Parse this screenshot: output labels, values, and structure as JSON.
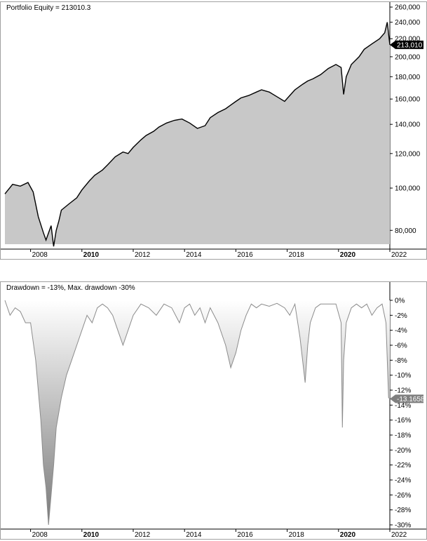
{
  "colors": {
    "equity_fill": "#c8c8c8",
    "equity_line": "#000000",
    "drawdown_line": "#8c8c8c",
    "tag_equity": "#000000",
    "tag_drawdown": "#808080",
    "frame": "#a0a0a0"
  },
  "chart_data": [
    {
      "type": "area",
      "title": "Portfolio Equity = 213010.3",
      "scale": "log",
      "ylim": [
        73000,
        262000
      ],
      "y_ticks": [
        "80,000",
        "100,000",
        "120,000",
        "140,000",
        "160,000",
        "180,000",
        "200,000",
        "220,000",
        "240,000",
        "260,000"
      ],
      "y_tick_values": [
        80000,
        100000,
        120000,
        140000,
        160000,
        180000,
        200000,
        220000,
        240000,
        260000
      ],
      "x_ticks": [
        {
          "label": "2008",
          "bold": false,
          "x": 2008
        },
        {
          "label": "2010",
          "bold": true,
          "x": 2010
        },
        {
          "label": "2012",
          "bold": false,
          "x": 2012
        },
        {
          "label": "2014",
          "bold": false,
          "x": 2014
        },
        {
          "label": "2016",
          "bold": false,
          "x": 2016
        },
        {
          "label": "2018",
          "bold": false,
          "x": 2018
        },
        {
          "label": "2020",
          "bold": true,
          "x": 2020
        },
        {
          "label": "2022",
          "bold": false,
          "x": 2022
        }
      ],
      "xlim": [
        2007.0,
        2022.0
      ],
      "last_value_label": "213,010",
      "last_value": 213010,
      "series": [
        {
          "x": [
            2007.0,
            2007.3,
            2007.6,
            2007.9,
            2008.1,
            2008.3,
            2008.5,
            2008.6,
            2008.8,
            2008.9,
            2009.0,
            2009.1,
            2009.2,
            2009.5,
            2009.8,
            2010.0,
            2010.3,
            2010.5,
            2010.8,
            2011.0,
            2011.3,
            2011.6,
            2011.8,
            2012.0,
            2012.3,
            2012.5,
            2012.8,
            2013.0,
            2013.3,
            2013.6,
            2013.9,
            2014.2,
            2014.5,
            2014.8,
            2015.0,
            2015.3,
            2015.6,
            2015.8,
            2016.0,
            2016.2,
            2016.5,
            2016.8,
            2017.0,
            2017.3,
            2017.6,
            2017.9,
            2018.1,
            2018.3,
            2018.6,
            2018.8,
            2019.0,
            2019.3,
            2019.6,
            2019.9,
            2020.1,
            2020.2,
            2020.3,
            2020.5,
            2020.8,
            2021.0,
            2021.3,
            2021.6,
            2021.8,
            2021.9,
            2022.0
          ],
          "values": [
            97000,
            102000,
            101000,
            103000,
            98000,
            86000,
            79000,
            76000,
            82000,
            73500,
            80000,
            84000,
            89000,
            92000,
            95000,
            99000,
            104000,
            107000,
            110000,
            113000,
            118000,
            121000,
            120000,
            124000,
            129000,
            132000,
            135000,
            138000,
            141000,
            143000,
            144000,
            141000,
            137000,
            139000,
            145000,
            149000,
            152000,
            155000,
            158000,
            161000,
            163000,
            166000,
            168000,
            166000,
            162000,
            158000,
            163000,
            168000,
            173000,
            176000,
            178000,
            182000,
            188000,
            192000,
            189000,
            164000,
            180000,
            192000,
            200000,
            208000,
            214000,
            220000,
            227000,
            240000,
            213010
          ]
        }
      ]
    },
    {
      "type": "area",
      "title": "Drawdown = -13%, Max. drawdown -30%",
      "ylim": [
        -30,
        0
      ],
      "y_ticks": [
        "0%",
        "-2%",
        "-4%",
        "-6%",
        "-8%",
        "-10%",
        "-12%",
        "-14%",
        "-16%",
        "-18%",
        "-20%",
        "-22%",
        "-24%",
        "-26%",
        "-28%",
        "-30%"
      ],
      "y_tick_values": [
        0,
        -2,
        -4,
        -6,
        -8,
        -10,
        -12,
        -14,
        -16,
        -18,
        -20,
        -22,
        -24,
        -26,
        -28,
        -30
      ],
      "x_ticks": [
        {
          "label": "2008",
          "bold": false,
          "x": 2008
        },
        {
          "label": "2010",
          "bold": true,
          "x": 2010
        },
        {
          "label": "2012",
          "bold": false,
          "x": 2012
        },
        {
          "label": "2014",
          "bold": false,
          "x": 2014
        },
        {
          "label": "2016",
          "bold": false,
          "x": 2016
        },
        {
          "label": "2018",
          "bold": false,
          "x": 2018
        },
        {
          "label": "2020",
          "bold": true,
          "x": 2020
        },
        {
          "label": "2022",
          "bold": false,
          "x": 2022
        }
      ],
      "xlim": [
        2007.0,
        2022.0
      ],
      "last_value_label": "-13.1658",
      "last_value": -13.1658,
      "series": [
        {
          "x": [
            2007.0,
            2007.2,
            2007.4,
            2007.6,
            2007.8,
            2008.0,
            2008.2,
            2008.4,
            2008.5,
            2008.6,
            2008.7,
            2008.8,
            2008.9,
            2009.0,
            2009.2,
            2009.4,
            2009.6,
            2009.8,
            2010.0,
            2010.2,
            2010.4,
            2010.6,
            2010.8,
            2011.0,
            2011.2,
            2011.4,
            2011.6,
            2011.8,
            2012.0,
            2012.3,
            2012.6,
            2012.9,
            2013.2,
            2013.5,
            2013.8,
            2014.0,
            2014.2,
            2014.4,
            2014.6,
            2014.8,
            2015.0,
            2015.3,
            2015.6,
            2015.8,
            2016.0,
            2016.2,
            2016.4,
            2016.6,
            2016.8,
            2017.0,
            2017.3,
            2017.6,
            2017.9,
            2018.1,
            2018.3,
            2018.5,
            2018.7,
            2018.8,
            2018.9,
            2019.1,
            2019.3,
            2019.6,
            2019.9,
            2020.1,
            2020.15,
            2020.2,
            2020.3,
            2020.5,
            2020.7,
            2020.9,
            2021.1,
            2021.3,
            2021.5,
            2021.7,
            2021.85,
            2021.95,
            2022.0
          ],
          "values": [
            0,
            -2,
            -1,
            -1.5,
            -3,
            -3,
            -8,
            -16,
            -22,
            -25,
            -30,
            -26,
            -22,
            -17,
            -13,
            -10,
            -8,
            -6,
            -4,
            -2,
            -3,
            -1,
            -0.5,
            -1,
            -2,
            -4,
            -6,
            -4,
            -2,
            -0.5,
            -1,
            -2,
            -0.5,
            -1,
            -3,
            -1,
            -0.5,
            -2,
            -1,
            -3,
            -1,
            -3,
            -6,
            -9,
            -7,
            -4,
            -2,
            -0.5,
            -1,
            -0.5,
            -0.8,
            -0.4,
            -1,
            -2,
            -0.5,
            -5,
            -11,
            -6,
            -3,
            -1,
            -0.5,
            -0.5,
            -0.5,
            -3,
            -17,
            -8,
            -3,
            -1,
            -0.5,
            -1,
            -0.5,
            -2,
            -1,
            -0.5,
            -3,
            -13,
            -13.1658
          ]
        }
      ]
    }
  ]
}
